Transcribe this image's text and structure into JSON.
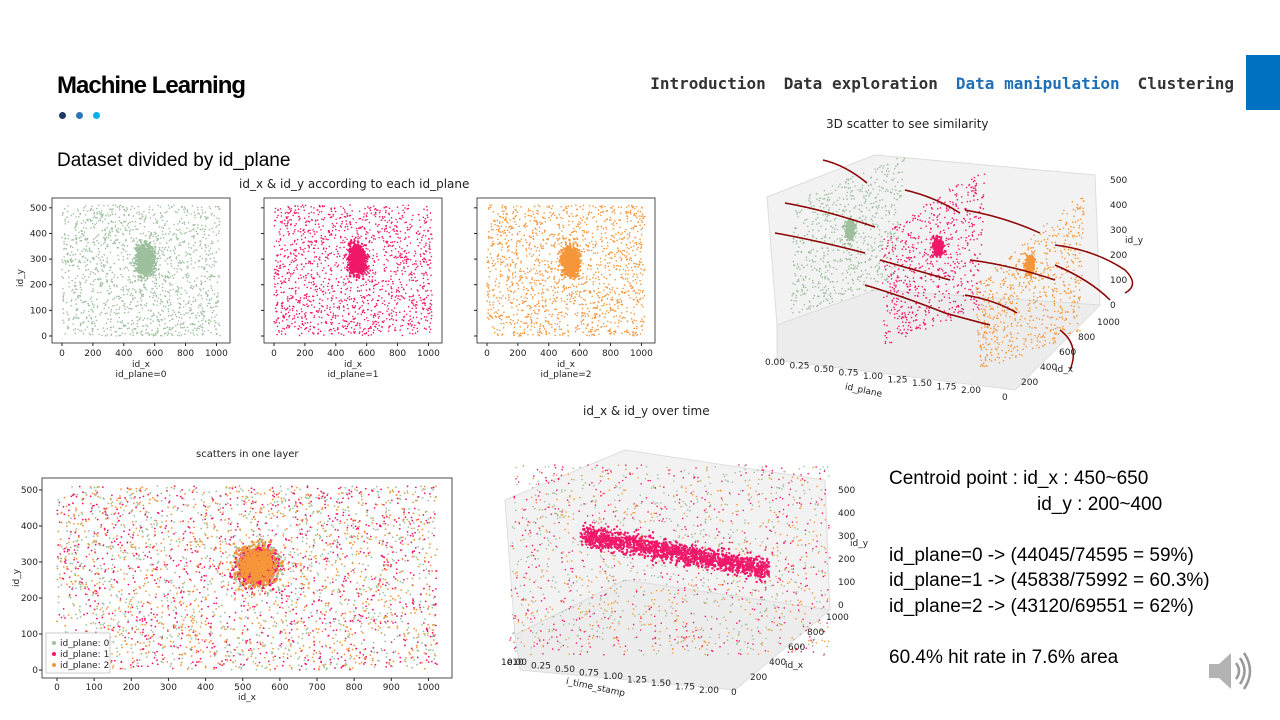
{
  "header": {
    "brand": "Machine Learning",
    "nav": [
      "Introduction",
      "Data exploration",
      "Data manipulation",
      "Clustering"
    ],
    "active_nav": "Data manipulation",
    "accent_color": "#0070C0"
  },
  "subtitle": "Dataset divided by id_plane",
  "charts": {
    "per_plane_title": "id_x & id_y according to each id_plane",
    "plane_labels": [
      "id_plane=0",
      "id_plane=1",
      "id_plane=2"
    ],
    "xlabel": "id_x",
    "ylabel": "id_y",
    "x_ticks": [
      "0",
      "200",
      "400",
      "600",
      "800",
      "1000"
    ],
    "y_ticks": [
      "0",
      "100",
      "200",
      "300",
      "400",
      "500"
    ],
    "colors": [
      "#9DBF9D",
      "#F0186A",
      "#F5963A"
    ],
    "scatter3d_title": "3D scatter to see similarity",
    "scatter3d_xlabel": "id_plane",
    "scatter3d_ylabel": "id_x",
    "scatter3d_zlabel": "id_y",
    "scatter3d_x_ticks": [
      "0.00",
      "0.25",
      "0.50",
      "0.75",
      "1.00",
      "1.25",
      "1.50",
      "1.75",
      "2.00"
    ],
    "scatter3d_y_ticks": [
      "0",
      "200",
      "400",
      "600",
      "800",
      "1000"
    ],
    "scatter3d_z_ticks": [
      "0",
      "100",
      "200",
      "300",
      "400",
      "500"
    ],
    "time_title": "id_x & id_y over time",
    "time_xlabel": "i_time_stamp",
    "time_offset": "1e10",
    "time_x_ticks": [
      "0.00",
      "0.25",
      "0.50",
      "0.75",
      "1.00",
      "1.25",
      "1.50",
      "1.75",
      "2.00"
    ],
    "time_ylabel": "id_x",
    "time_zlabel": "id_y",
    "one_layer_title": "scatters in one layer",
    "one_layer_x_ticks": [
      "0",
      "100",
      "200",
      "300",
      "400",
      "500",
      "600",
      "700",
      "800",
      "900",
      "1000"
    ],
    "legend": [
      "id_plane: 0",
      "id_plane: 1",
      "id_plane: 2"
    ]
  },
  "stats": {
    "centroid_line1": "Centroid point : id_x : 450~650",
    "centroid_line2": "id_y : 200~400",
    "plane0": "id_plane=0 -> (44045/74595 = 59%)",
    "plane1": "id_plane=1 -> (45838/75992 = 60.3%)",
    "plane2": "id_plane=2 -> (43120/69551 = 62%)",
    "hit_rate": "60.4% hit rate in 7.6% area"
  },
  "chart_data": [
    {
      "type": "scatter",
      "name": "id_plane=0",
      "x_range": [
        0,
        1023
      ],
      "y_range": [
        0,
        511
      ],
      "centroid": {
        "x": [
          450,
          650
        ],
        "y": [
          200,
          400
        ]
      }
    },
    {
      "type": "scatter",
      "name": "id_plane=1",
      "x_range": [
        0,
        1023
      ],
      "y_range": [
        0,
        511
      ],
      "centroid": {
        "x": [
          450,
          650
        ],
        "y": [
          200,
          400
        ]
      }
    },
    {
      "type": "scatter",
      "name": "id_plane=2",
      "x_range": [
        0,
        1023
      ],
      "y_range": [
        0,
        511
      ],
      "centroid": {
        "x": [
          450,
          650
        ],
        "y": [
          200,
          400
        ]
      }
    }
  ]
}
